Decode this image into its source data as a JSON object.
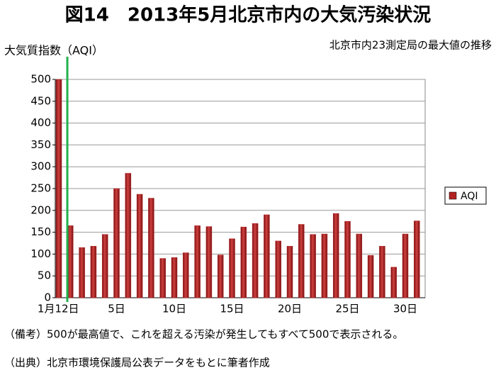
{
  "chart_data": {
    "type": "bar",
    "title": "図14　2013年5月北京市内の大気汚染状況",
    "y_label": "大気質指数（AQI）",
    "subtitle": "北京市内23測定局の最大値の推移",
    "categories": [
      "1月1",
      "2日",
      null,
      null,
      null,
      "5日",
      null,
      null,
      null,
      null,
      "10日",
      null,
      null,
      null,
      null,
      "15日",
      null,
      null,
      null,
      null,
      "20日",
      null,
      null,
      null,
      null,
      "25日",
      null,
      null,
      null,
      null,
      "30日",
      null
    ],
    "series": [
      {
        "name": "AQI",
        "color": "#b22222",
        "values": [
          500,
          165,
          115,
          118,
          145,
          250,
          285,
          237,
          228,
          90,
          92,
          103,
          165,
          163,
          98,
          135,
          162,
          170,
          190,
          130,
          118,
          168,
          145,
          146,
          193,
          175,
          146,
          97,
          118,
          70,
          146,
          176
        ]
      }
    ],
    "ylim": [
      0,
      500
    ],
    "yticks": [
      0,
      50,
      100,
      150,
      200,
      250,
      300,
      350,
      400,
      450,
      500
    ],
    "grid": true,
    "legend": "right",
    "notes": [
      "（備考）500が最高値で、これを超える汚染が発生してもすべて500で表示される。",
      "（出典）北京市環境保護局公表データをもとに筆者作成"
    ]
  }
}
